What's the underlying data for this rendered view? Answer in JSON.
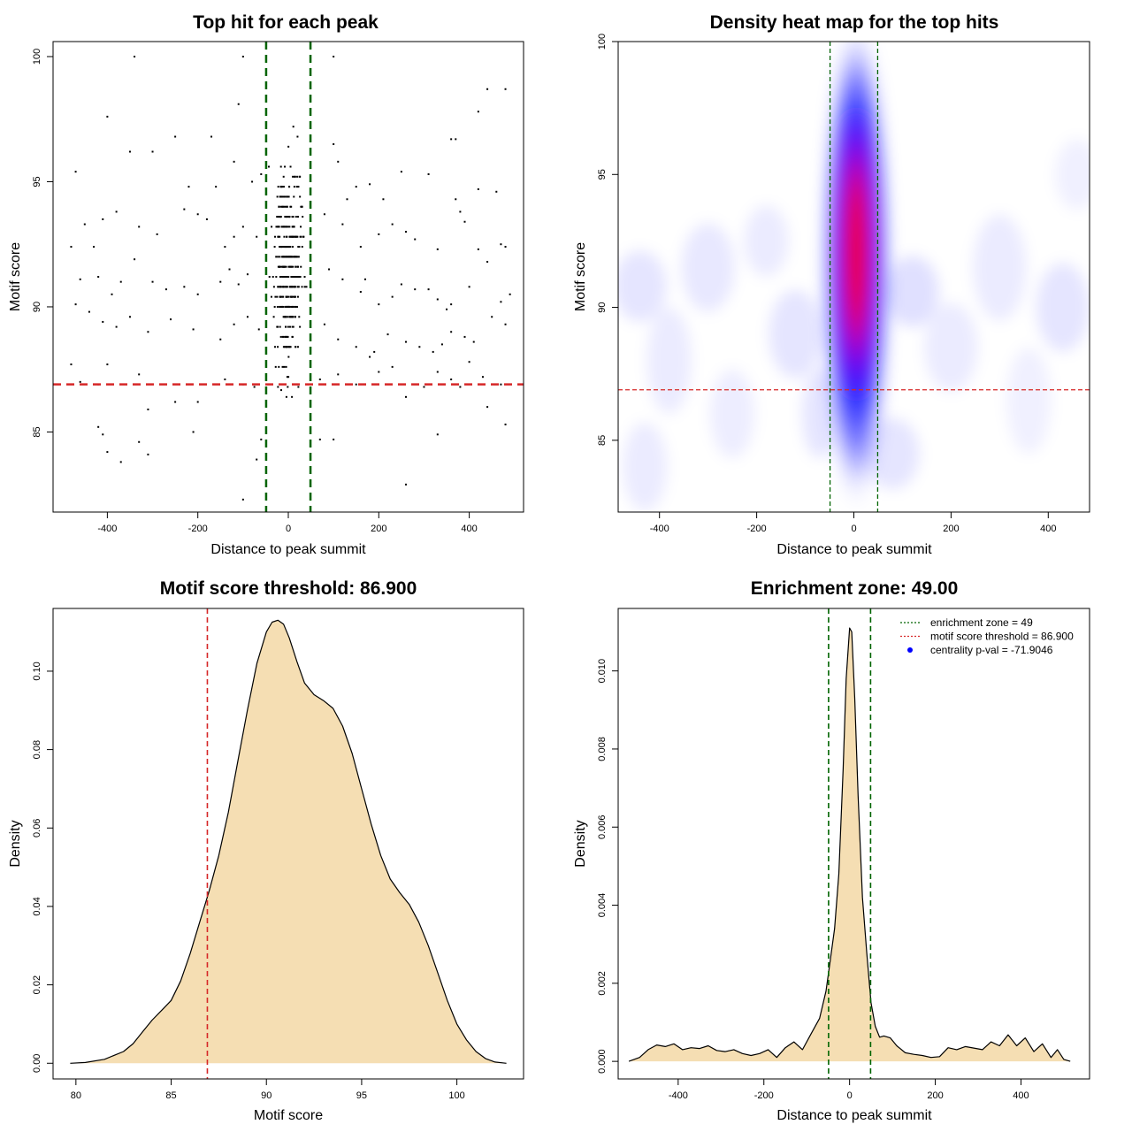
{
  "chart_data": [
    {
      "type": "scatter",
      "title": "Top hit for each peak",
      "xlabel": "Distance to peak summit",
      "ylabel": "Motif score",
      "xlim": [
        -520,
        520
      ],
      "ylim": [
        81.8,
        100.6
      ],
      "xticks": [
        -400,
        -200,
        0,
        200,
        400
      ],
      "yticks": [
        85,
        90,
        95,
        100
      ],
      "vlines": [
        -49,
        49
      ],
      "vline_color": "#006400",
      "hline": 86.9,
      "hline_color": "#d62728",
      "points": [
        [
          -340,
          100
        ],
        [
          -100,
          100
        ],
        [
          100,
          100
        ],
        [
          -400,
          97.6
        ],
        [
          -250,
          96.8
        ],
        [
          -170,
          96.8
        ],
        [
          -110,
          98.1
        ],
        [
          -120,
          95.8
        ],
        [
          -350,
          96.2
        ],
        [
          -300,
          96.2
        ],
        [
          -470,
          95.4
        ],
        [
          -220,
          94.8
        ],
        [
          -160,
          94.8
        ],
        [
          -80,
          95.0
        ],
        [
          -60,
          95.3
        ],
        [
          -450,
          93.3
        ],
        [
          -430,
          92.4
        ],
        [
          -410,
          93.5
        ],
        [
          -380,
          93.8
        ],
        [
          -330,
          93.2
        ],
        [
          -290,
          92.9
        ],
        [
          -230,
          93.9
        ],
        [
          -200,
          93.7
        ],
        [
          -180,
          93.5
        ],
        [
          -140,
          92.4
        ],
        [
          -100,
          93.2
        ],
        [
          -120,
          92.8
        ],
        [
          -70,
          92.8
        ],
        [
          -480,
          92.4
        ],
        [
          -460,
          91.1
        ],
        [
          -420,
          91.2
        ],
        [
          -390,
          90.5
        ],
        [
          -370,
          91.0
        ],
        [
          -340,
          91.9
        ],
        [
          -300,
          91.0
        ],
        [
          -270,
          90.7
        ],
        [
          -230,
          90.8
        ],
        [
          -200,
          90.5
        ],
        [
          -150,
          91.0
        ],
        [
          -130,
          91.5
        ],
        [
          -110,
          90.9
        ],
        [
          -90,
          91.3
        ],
        [
          -470,
          90.1
        ],
        [
          -440,
          89.8
        ],
        [
          -410,
          89.4
        ],
        [
          -380,
          89.2
        ],
        [
          -350,
          89.6
        ],
        [
          -310,
          89.0
        ],
        [
          -260,
          89.5
        ],
        [
          -210,
          89.1
        ],
        [
          -150,
          88.7
        ],
        [
          -120,
          89.3
        ],
        [
          -90,
          89.6
        ],
        [
          -65,
          89.1
        ],
        [
          -480,
          87.7
        ],
        [
          -460,
          87.0
        ],
        [
          -420,
          86.9
        ],
        [
          -400,
          87.7
        ],
        [
          -330,
          87.3
        ],
        [
          -250,
          86.2
        ],
        [
          -200,
          86.2
        ],
        [
          -140,
          87.1
        ],
        [
          -100,
          86.9
        ],
        [
          -75,
          86.8
        ],
        [
          -310,
          85.9
        ],
        [
          -420,
          85.2
        ],
        [
          -410,
          84.9
        ],
        [
          -400,
          84.2
        ],
        [
          -370,
          83.8
        ],
        [
          -330,
          84.6
        ],
        [
          -310,
          84.1
        ],
        [
          -210,
          85.0
        ],
        [
          -100,
          82.3
        ],
        [
          -70,
          83.9
        ],
        [
          -60,
          84.7
        ],
        [
          100,
          96.5
        ],
        [
          110,
          95.8
        ],
        [
          150,
          94.8
        ],
        [
          180,
          94.9
        ],
        [
          130,
          94.3
        ],
        [
          210,
          94.3
        ],
        [
          250,
          95.4
        ],
        [
          310,
          95.3
        ],
        [
          360,
          96.7
        ],
        [
          370,
          96.7
        ],
        [
          420,
          97.8
        ],
        [
          440,
          98.7
        ],
        [
          480,
          98.7
        ],
        [
          80,
          93.7
        ],
        [
          120,
          93.3
        ],
        [
          160,
          92.4
        ],
        [
          200,
          92.9
        ],
        [
          230,
          93.3
        ],
        [
          260,
          93.0
        ],
        [
          280,
          92.7
        ],
        [
          330,
          92.3
        ],
        [
          370,
          94.3
        ],
        [
          380,
          93.8
        ],
        [
          390,
          93.4
        ],
        [
          420,
          94.7
        ],
        [
          460,
          94.6
        ],
        [
          470,
          92.5
        ],
        [
          480,
          92.4
        ],
        [
          90,
          91.5
        ],
        [
          120,
          91.1
        ],
        [
          160,
          90.6
        ],
        [
          170,
          91.1
        ],
        [
          200,
          90.1
        ],
        [
          230,
          90.4
        ],
        [
          250,
          90.9
        ],
        [
          280,
          90.7
        ],
        [
          310,
          90.7
        ],
        [
          330,
          90.3
        ],
        [
          350,
          89.9
        ],
        [
          360,
          90.1
        ],
        [
          400,
          90.8
        ],
        [
          420,
          92.3
        ],
        [
          440,
          91.8
        ],
        [
          470,
          90.2
        ],
        [
          490,
          90.5
        ],
        [
          80,
          89.3
        ],
        [
          110,
          88.7
        ],
        [
          150,
          88.4
        ],
        [
          190,
          88.2
        ],
        [
          220,
          88.9
        ],
        [
          260,
          88.6
        ],
        [
          290,
          88.4
        ],
        [
          320,
          88.2
        ],
        [
          340,
          88.5
        ],
        [
          360,
          89.0
        ],
        [
          390,
          88.8
        ],
        [
          410,
          88.6
        ],
        [
          450,
          89.6
        ],
        [
          480,
          89.3
        ],
        [
          70,
          87.1
        ],
        [
          110,
          87.3
        ],
        [
          150,
          86.9
        ],
        [
          180,
          88.0
        ],
        [
          200,
          87.4
        ],
        [
          230,
          87.6
        ],
        [
          260,
          86.4
        ],
        [
          300,
          86.8
        ],
        [
          330,
          87.4
        ],
        [
          360,
          87.1
        ],
        [
          380,
          86.8
        ],
        [
          400,
          87.8
        ],
        [
          430,
          87.2
        ],
        [
          470,
          86.9
        ],
        [
          480,
          85.3
        ],
        [
          70,
          84.7
        ],
        [
          100,
          84.7
        ],
        [
          260,
          82.9
        ],
        [
          330,
          84.9
        ],
        [
          440,
          86.0
        ]
      ],
      "centered_points": 380,
      "point_color": "#000000"
    },
    {
      "type": "heatmap",
      "title": "Density heat map for the top hits",
      "xlabel": "Distance to peak summit",
      "ylabel": "Motif score",
      "xlim": [
        -485,
        485
      ],
      "ylim": [
        82.3,
        100
      ],
      "xticks": [
        -400,
        -200,
        0,
        200,
        400
      ],
      "yticks": [
        85,
        90,
        95,
        100
      ],
      "vlines": [
        -49,
        49
      ],
      "vline_color": "#006400",
      "hline": 86.9,
      "hline_color": "#d62728",
      "color_scale": [
        "#ffffff",
        "#0000ff",
        "#ff0000"
      ],
      "peak_center": [
        5,
        92.0
      ]
    },
    {
      "type": "area",
      "title": "Motif score threshold: 86.900",
      "xlabel": "Motif score",
      "ylabel": "Density",
      "xlim": [
        78.8,
        103.5
      ],
      "ylim": [
        -0.004,
        0.116
      ],
      "xticks": [
        80,
        85,
        90,
        95,
        100
      ],
      "yticks": [
        0.0,
        0.02,
        0.04,
        0.06,
        0.08,
        0.1
      ],
      "ytick_labels": [
        "0.00",
        "0.02",
        "0.04",
        "0.06",
        "0.08",
        "0.10"
      ],
      "vline": 86.9,
      "vline_color": "#d62728",
      "fill_color": "#f5deb3",
      "x": [
        79.7,
        80.5,
        81.5,
        82.5,
        83.0,
        83.5,
        84.0,
        84.5,
        85.0,
        85.5,
        86.0,
        86.5,
        87.0,
        87.5,
        88.0,
        88.5,
        89.0,
        89.5,
        90.0,
        90.3,
        90.6,
        90.9,
        91.2,
        91.6,
        92.0,
        92.5,
        93.0,
        93.5,
        94.0,
        94.5,
        95.0,
        95.5,
        96.0,
        96.5,
        97.0,
        97.5,
        98.0,
        98.5,
        99.0,
        99.5,
        100.0,
        100.5,
        101.0,
        101.5,
        102.0,
        102.6
      ],
      "y": [
        0.0,
        0.0002,
        0.001,
        0.003,
        0.005,
        0.008,
        0.011,
        0.0135,
        0.016,
        0.021,
        0.028,
        0.036,
        0.044,
        0.053,
        0.064,
        0.077,
        0.09,
        0.102,
        0.11,
        0.1125,
        0.113,
        0.112,
        0.1085,
        0.1025,
        0.097,
        0.094,
        0.0925,
        0.0905,
        0.086,
        0.079,
        0.07,
        0.061,
        0.053,
        0.047,
        0.0435,
        0.0405,
        0.036,
        0.03,
        0.023,
        0.016,
        0.01,
        0.006,
        0.003,
        0.0012,
        0.0003,
        0.0
      ]
    },
    {
      "type": "area",
      "title": "Enrichment zone: 49.00",
      "xlabel": "Distance to peak summit",
      "ylabel": "Density",
      "xlim": [
        -540,
        560
      ],
      "ylim": [
        -0.00045,
        0.0116
      ],
      "xticks": [
        -400,
        -200,
        0,
        200,
        400
      ],
      "yticks": [
        0.0,
        0.002,
        0.004,
        0.006,
        0.008,
        0.01
      ],
      "ytick_labels": [
        "0.000",
        "0.002",
        "0.004",
        "0.006",
        "0.008",
        "0.010"
      ],
      "vlines": [
        -49,
        49
      ],
      "vline_color": "#006400",
      "fill_color": "#f5deb3",
      "x": [
        -515,
        -490,
        -470,
        -450,
        -430,
        -410,
        -390,
        -370,
        -350,
        -330,
        -310,
        -290,
        -270,
        -250,
        -230,
        -210,
        -190,
        -170,
        -150,
        -130,
        -110,
        -90,
        -70,
        -55,
        -45,
        -35,
        -25,
        -15,
        -8,
        0,
        5,
        12,
        20,
        30,
        40,
        50,
        60,
        70,
        80,
        95,
        110,
        130,
        150,
        170,
        190,
        210,
        230,
        250,
        270,
        290,
        310,
        330,
        350,
        370,
        390,
        410,
        430,
        450,
        470,
        485,
        500,
        515
      ],
      "y": [
        0.0,
        0.0001,
        0.0003,
        0.00042,
        0.00038,
        0.00045,
        0.0003,
        0.00035,
        0.00033,
        0.0004,
        0.00028,
        0.00025,
        0.0003,
        0.0002,
        0.00015,
        0.0002,
        0.0003,
        0.0001,
        0.00035,
        0.0005,
        0.0003,
        0.0007,
        0.0011,
        0.0018,
        0.0026,
        0.0034,
        0.0048,
        0.0075,
        0.0098,
        0.0111,
        0.011,
        0.0093,
        0.0068,
        0.0042,
        0.0028,
        0.0015,
        0.0009,
        0.00062,
        0.00065,
        0.0006,
        0.0004,
        0.00022,
        0.00018,
        0.00015,
        0.0001,
        0.00012,
        0.00035,
        0.0003,
        0.00038,
        0.00034,
        0.0003,
        0.0005,
        0.0004,
        0.00068,
        0.0004,
        0.0006,
        0.00025,
        0.00045,
        0.0001,
        0.0003,
        5e-05,
        0.0
      ],
      "legend": [
        {
          "label": "enrichment zone = 49",
          "style": "dotted",
          "color": "#006400"
        },
        {
          "label": "motif score threshold = 86.900",
          "style": "dotted",
          "color": "#d62728"
        },
        {
          "label": "centrality p-val = -71.9046",
          "style": "dot",
          "color": "#0000ff"
        }
      ],
      "legend_position": "top-right"
    }
  ]
}
